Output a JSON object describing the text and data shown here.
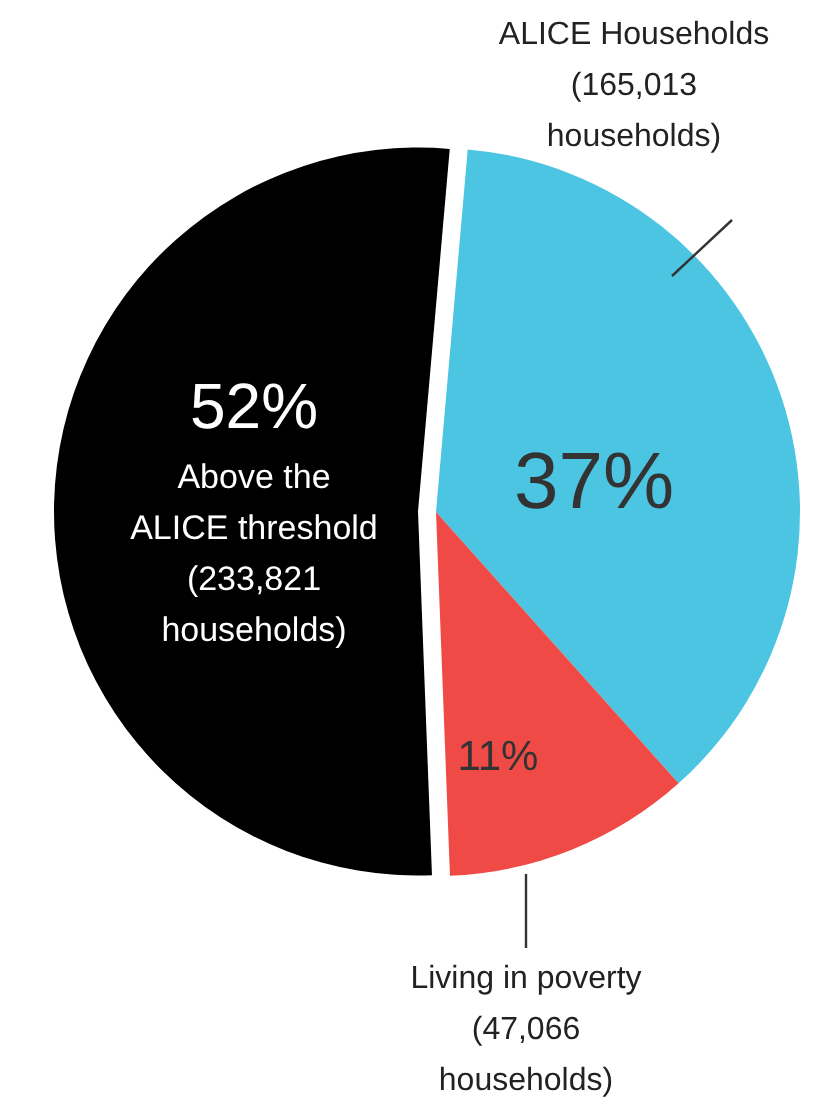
{
  "chart_data": {
    "type": "pie",
    "categories": [
      "ALICE Households",
      "Living in poverty",
      "Above the\nALICE threshold"
    ],
    "values": [
      37,
      11,
      52
    ],
    "colors": [
      "#4bc5e1",
      "#ef4a45",
      "#000000"
    ],
    "value_labels": [
      "37%",
      "11%",
      "52%"
    ],
    "annotations": [
      "(165,013\nhouseholds)",
      "(47,066\nhouseholds)",
      "(233,821\nhouseholds)"
    ]
  }
}
